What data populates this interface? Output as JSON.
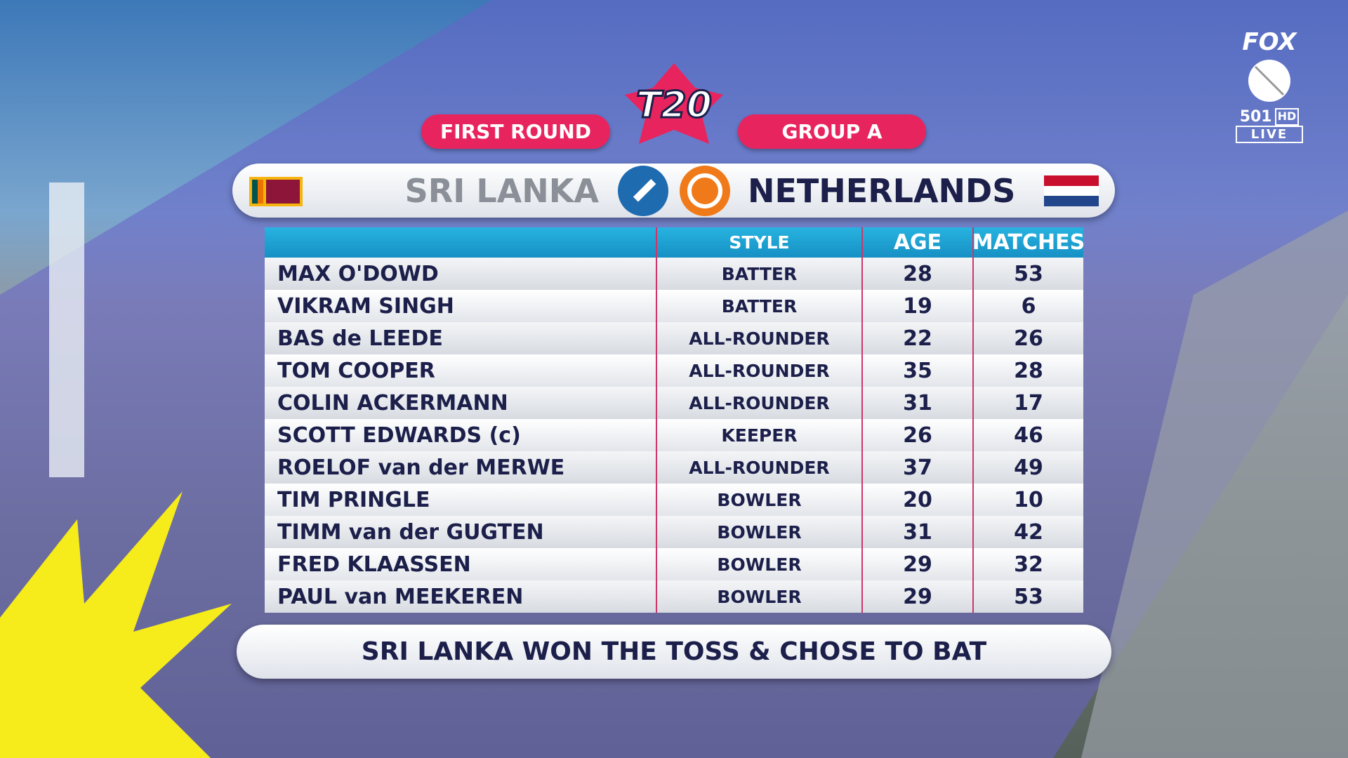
{
  "header": {
    "logo": "T20",
    "stage": "FIRST ROUND",
    "group": "GROUP A"
  },
  "teams": {
    "home": "SRI LANKA",
    "away": "NETHERLANDS"
  },
  "table": {
    "columns": [
      "STYLE",
      "AGE",
      "MATCHES"
    ],
    "rows": [
      [
        "MAX O'DOWD",
        "BATTER",
        28,
        53
      ],
      [
        "VIKRAM SINGH",
        "BATTER",
        19,
        6
      ],
      [
        "BAS de LEEDE",
        "ALL-ROUNDER",
        22,
        26
      ],
      [
        "TOM COOPER",
        "ALL-ROUNDER",
        35,
        28
      ],
      [
        "COLIN ACKERMANN",
        "ALL-ROUNDER",
        31,
        17
      ],
      [
        "SCOTT EDWARDS  (c)",
        "KEEPER",
        26,
        46
      ],
      [
        "ROELOF van der MERWE",
        "ALL-ROUNDER",
        37,
        49
      ],
      [
        "TIM PRINGLE",
        "BOWLER",
        20,
        10
      ],
      [
        "TIMM van der GUGTEN",
        "BOWLER",
        31,
        42
      ],
      [
        "FRED KLAASSEN",
        "BOWLER",
        29,
        32
      ],
      [
        "PAUL van MEEKEREN",
        "BOWLER",
        29,
        53
      ]
    ]
  },
  "footer": "SRI LANKA WON THE TOSS & CHOSE TO BAT",
  "broadcaster": {
    "name": "FOX",
    "channel": "501",
    "quality": "HD",
    "status": "LIVE"
  }
}
